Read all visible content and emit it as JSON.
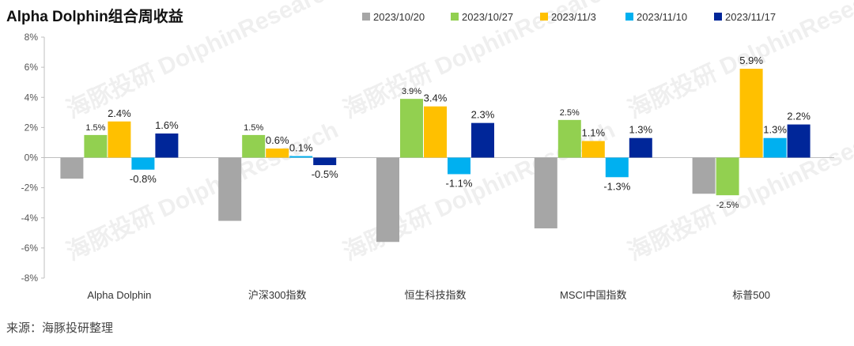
{
  "title": "Alpha Dolphin组合周收益",
  "source": "来源：海豚投研整理",
  "watermark": "海豚投研 DolphinResearch",
  "chart_data": {
    "type": "bar",
    "title": "Alpha Dolphin组合周收益",
    "categories": [
      "Alpha Dolphin",
      "沪深300指数",
      "恒生科技指数",
      "MSCI中国指数",
      "标普500"
    ],
    "series": [
      {
        "name": "2023/10/20",
        "color": "#A6A6A6",
        "values": [
          -1.4,
          -4.2,
          -5.6,
          -4.7,
          -2.4
        ],
        "labels": [
          "",
          "",
          "",
          "",
          ""
        ]
      },
      {
        "name": "2023/10/27",
        "color": "#92D050",
        "values": [
          1.5,
          1.5,
          3.9,
          2.5,
          -2.5
        ],
        "labels": [
          "1.5%",
          "1.5%",
          "3.9%",
          "2.5%",
          "-2.5%"
        ]
      },
      {
        "name": "2023/11/3",
        "color": "#FFC000",
        "values": [
          2.4,
          0.6,
          3.4,
          1.1,
          5.9
        ],
        "labels": [
          "2.4%",
          "0.6%",
          "3.4%",
          "1.1%",
          "5.9%"
        ]
      },
      {
        "name": "2023/11/10",
        "color": "#00B0F0",
        "values": [
          -0.8,
          0.1,
          -1.1,
          -1.3,
          1.3
        ],
        "labels": [
          "-0.8%",
          "0.1%",
          "-1.1%",
          "-1.3%",
          "1.3%"
        ]
      },
      {
        "name": "2023/11/17",
        "color": "#002699",
        "values": [
          1.6,
          -0.5,
          2.3,
          1.3,
          2.2
        ],
        "labels": [
          "1.6%",
          "-0.5%",
          "2.3%",
          "1.3%",
          "2.2%"
        ]
      }
    ],
    "ylim": [
      -8,
      8
    ],
    "yticks": [
      -8,
      -6,
      -4,
      -2,
      0,
      2,
      4,
      6,
      8
    ],
    "yticklabels": [
      "-8%",
      "-6%",
      "-4%",
      "-2%",
      "0%",
      "2%",
      "4%",
      "6%",
      "8%"
    ],
    "grid": false,
    "legend": "top-right"
  }
}
